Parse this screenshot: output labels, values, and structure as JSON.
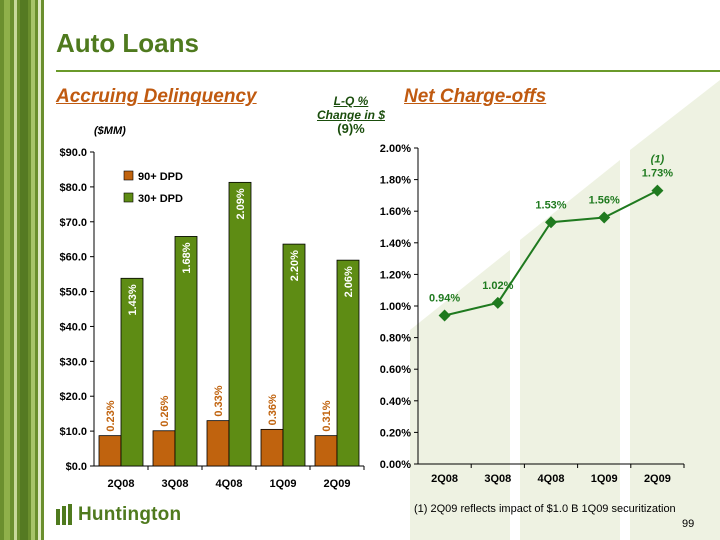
{
  "header": {
    "title": "Auto Loans",
    "left_section": "Accruing Delinquency",
    "right_section": "Net Charge-offs",
    "lq_line1": "L-Q %",
    "lq_line2": "Change in $",
    "lq_value": "(9)%",
    "unit": "($MM)"
  },
  "footer": {
    "footnote": "(1) 2Q09 reflects impact of $1.0 B 1Q09 securitization",
    "page_number": "99",
    "logo_text": "Huntington"
  },
  "colors": {
    "dpd90": "#c0630e",
    "dpd30": "#5e8c14",
    "line": "#1f7a1f",
    "brand": "#4f7a1e"
  },
  "chart_data": [
    {
      "type": "bar",
      "categories": [
        "2Q08",
        "3Q08",
        "4Q08",
        "1Q09",
        "2Q09"
      ],
      "series": [
        {
          "name": "90+ DPD",
          "values": [
            8.7,
            10.1,
            13.0,
            10.5,
            8.7
          ],
          "labels": [
            "0.23%",
            "0.26%",
            "0.33%",
            "0.36%",
            "0.31%"
          ]
        },
        {
          "name": "30+ DPD",
          "values": [
            53.8,
            65.8,
            81.3,
            63.6,
            59.0
          ],
          "labels": [
            "1.43%",
            "1.68%",
            "2.09%",
            "2.20%",
            "2.06%"
          ]
        }
      ],
      "ylim": [
        0,
        90
      ],
      "yticks": [
        "$0.0",
        "$10.0",
        "$20.0",
        "$30.0",
        "$40.0",
        "$50.0",
        "$60.0",
        "$70.0",
        "$80.0",
        "$90.0"
      ],
      "legend": "top-left",
      "grid": false
    },
    {
      "type": "line",
      "categories": [
        "2Q08",
        "3Q08",
        "4Q08",
        "1Q09",
        "2Q09"
      ],
      "series": [
        {
          "values": [
            0.94,
            1.02,
            1.53,
            1.56,
            1.73
          ],
          "labels": [
            "0.94%",
            "1.02%",
            "1.53%",
            "1.56%",
            "1.73%"
          ]
        }
      ],
      "ylim": [
        0,
        2.0
      ],
      "yticks": [
        "0.00%",
        "0.20%",
        "0.40%",
        "0.60%",
        "0.80%",
        "1.00%",
        "1.20%",
        "1.40%",
        "1.60%",
        "1.80%",
        "2.00%"
      ],
      "annotation": "(1)",
      "grid": false
    }
  ]
}
